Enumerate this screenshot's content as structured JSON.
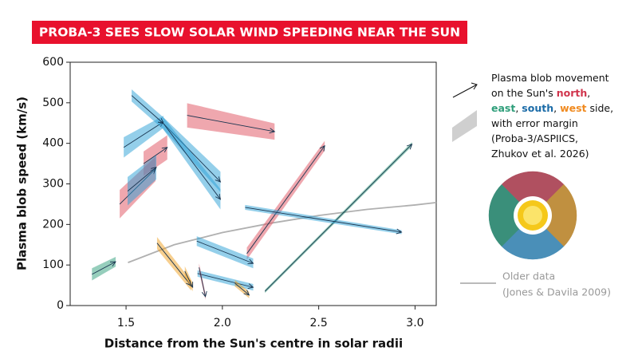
{
  "chart_data": {
    "type": "arrow",
    "title": "PROBA-3 SEES SLOW SOLAR WIND SPEEDING NEAR THE SUN",
    "title_background": "#e8112d",
    "x_label": "Distance from the Sun's centre in solar radii",
    "y_label": "Plasma blob speed (km/s)",
    "xlim": [
      1.21,
      3.11
    ],
    "xticks": [
      {
        "value": 1.5,
        "label": "1.5"
      },
      {
        "value": 2,
        "label": "2.0"
      },
      {
        "value": 2.5,
        "label": "2.5"
      },
      {
        "value": 3,
        "label": "3.0"
      }
    ],
    "ylim": [
      0,
      600
    ],
    "yticks": [
      0,
      100,
      200,
      300,
      400,
      500,
      600
    ],
    "series": [
      {
        "color": "#2e9e7a",
        "x": [
          1.323,
          1.446
        ],
        "values": [
          77,
          108
        ],
        "error": [
          15,
          12
        ]
      },
      {
        "color": "#e0505e",
        "x": [
          1.467,
          1.653
        ],
        "values": [
          250,
          337
        ],
        "error": [
          35,
          30
        ]
      },
      {
        "color": "#e0505e",
        "x": [
          1.591,
          1.714
        ],
        "values": [
          350,
          390
        ],
        "error": [
          30,
          30
        ]
      },
      {
        "color": "#2a9fd6",
        "x": [
          1.508,
          1.657
        ],
        "values": [
          282,
          341
        ],
        "error": [
          35,
          30
        ]
      },
      {
        "color": "#2a9fd6",
        "x": [
          1.488,
          1.694
        ],
        "values": [
          390,
          453
        ],
        "error": [
          25,
          15
        ]
      },
      {
        "color": "#2a9fd6",
        "x": [
          1.529,
          1.694
        ],
        "values": [
          518,
          449
        ],
        "error": [
          15,
          15
        ]
      },
      {
        "color": "#2a9fd6",
        "x": [
          1.694,
          1.99
        ],
        "values": [
          449,
          305
        ],
        "error": [
          15,
          25
        ]
      },
      {
        "color": "#2a9fd6",
        "x": [
          1.694,
          1.99
        ],
        "values": [
          449,
          262
        ],
        "error": [
          15,
          25
        ]
      },
      {
        "color": "#e0505e",
        "x": [
          1.817,
          2.271
        ],
        "values": [
          469,
          429
        ],
        "error": [
          30,
          20
        ]
      },
      {
        "color": "#e0505e",
        "x": [
          2.127,
          2.531
        ],
        "values": [
          128,
          394
        ],
        "error": [
          15,
          12
        ]
      },
      {
        "color": "#2e9e7a",
        "x": [
          2.221,
          2.984
        ],
        "values": [
          35,
          398
        ],
        "error": [
          4,
          5
        ]
      },
      {
        "color": "#2a9fd6",
        "x": [
          2.118,
          2.93
        ],
        "values": [
          242,
          181
        ],
        "error": [
          6,
          5
        ]
      },
      {
        "color": "#2a9fd6",
        "x": [
          1.867,
          2.16
        ],
        "values": [
          159,
          104
        ],
        "error": [
          12,
          12
        ]
      },
      {
        "color": "#2a9fd6",
        "x": [
          1.871,
          2.16
        ],
        "values": [
          79,
          45
        ],
        "error": [
          8,
          8
        ]
      },
      {
        "color": "#f0a020",
        "x": [
          1.661,
          1.838
        ],
        "values": [
          154,
          49
        ],
        "error": [
          15,
          12
        ]
      },
      {
        "color": "#f0a020",
        "x": [
          1.805,
          1.846
        ],
        "values": [
          85,
          45
        ],
        "error": [
          12,
          10
        ]
      },
      {
        "color": "#e0505e",
        "x": [
          1.879,
          1.912
        ],
        "values": [
          94,
          22
        ],
        "error": [
          10,
          8
        ]
      },
      {
        "color": "#f0a020",
        "x": [
          2.065,
          2.139
        ],
        "values": [
          55,
          26
        ],
        "error": [
          8,
          8
        ]
      }
    ],
    "older_data": {
      "name": "Older data",
      "source": "(Jones & Davila 2009)",
      "color": "#b0b0b0",
      "x": [
        1.51,
        1.75,
        2.0,
        2.25,
        2.5,
        2.75,
        3.0,
        3.11
      ],
      "values": [
        106,
        150,
        180,
        203,
        222,
        237,
        248,
        254
      ]
    },
    "legend": {
      "lines": [
        [
          {
            "text": "Plasma blob movement"
          }
        ],
        [
          {
            "text": "on the Sun's "
          },
          {
            "text": "north",
            "color": "#d0344c"
          },
          {
            "text": ","
          }
        ],
        [
          {
            "text": "east",
            "color": "#2e9e7a"
          },
          {
            "text": ", "
          },
          {
            "text": "south",
            "color": "#1c6ca8"
          },
          {
            "text": ", "
          },
          {
            "text": "west",
            "color": "#f08a20"
          },
          {
            "text": " side,"
          }
        ],
        [
          {
            "text": "with error margin"
          }
        ],
        [
          {
            "text": "(Proba-3/ASPIICS,"
          }
        ],
        [
          {
            "text": "Zhukov et al. 2026)"
          }
        ]
      ]
    }
  }
}
